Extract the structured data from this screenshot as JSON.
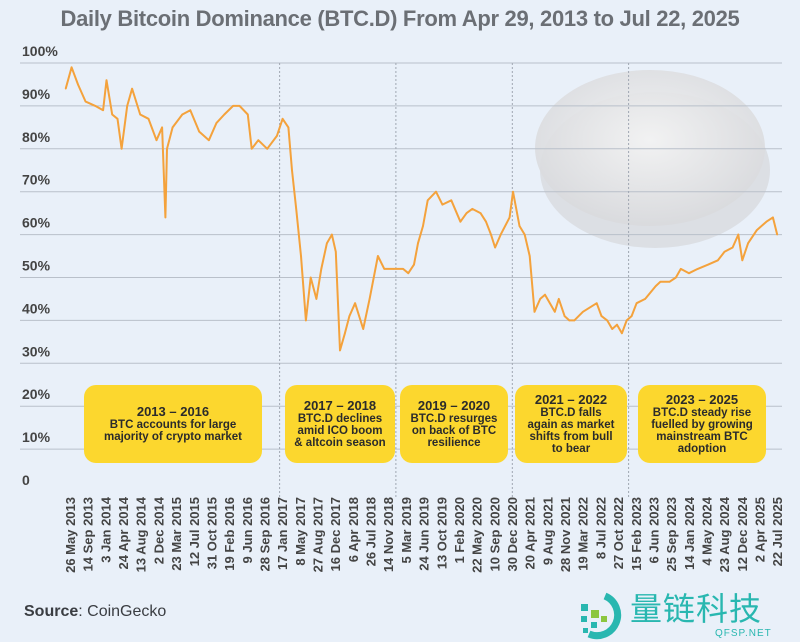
{
  "chart_data": {
    "type": "line",
    "title": "Daily Bitcoin Dominance (BTC.D) From Apr 29, 2013 to Jul 22, 2025",
    "xlabel": "",
    "ylabel": "",
    "ylim": [
      0,
      100
    ],
    "yticks": [
      "0",
      "10%",
      "20%",
      "30%",
      "40%",
      "50%",
      "60%",
      "70%",
      "80%",
      "90%",
      "100%"
    ],
    "grid": "horizontal",
    "xticks": [
      "26 May 2013",
      "14 Sep 2013",
      "3 Jan 2014",
      "24 Apr 2014",
      "13 Aug 2014",
      "2 Dec 2014",
      "23 Mar 2015",
      "12 Jul 2015",
      "31 Oct 2015",
      "19 Feb 2016",
      "9 Jun 2016",
      "28 Sep 2016",
      "17 Jan 2017",
      "8 May 2017",
      "27 Aug 2017",
      "16 Dec 2017",
      "6 Apr 2018",
      "26 Jul 2018",
      "14 Nov 2018",
      "5 Mar 2019",
      "24 Jun 2019",
      "13 Oct 2019",
      "1 Feb 2020",
      "22 May 2020",
      "10 Sep 2020",
      "30 Dec 2020",
      "20 Apr 2021",
      "9 Aug 2021",
      "28 Nov 2021",
      "19 Mar 2022",
      "8 Jul 2022",
      "27 Oct 2022",
      "15 Feb 2023",
      "6 Jun 2023",
      "25 Sep 2023",
      "14 Jan 2024",
      "4 May 2024",
      "23 Aug 2024",
      "12 Dec 2024",
      "2 Apr 2025",
      "22 Jul 2025"
    ],
    "period_dividers": [
      "2017-01-01",
      "2019-01-01",
      "2021-01-01",
      "2023-01-01"
    ],
    "line_color": "#f4a23c",
    "series": [
      {
        "x": [
          "2013-04-29",
          "2013-06-05",
          "2013-07-15",
          "2013-09-01",
          "2013-11-01",
          "2013-12-20",
          "2014-01-10",
          "2014-02-15",
          "2014-03-20",
          "2014-04-15",
          "2014-05-20",
          "2014-06-20",
          "2014-08-10",
          "2014-10-01",
          "2014-11-20",
          "2014-12-25",
          "2015-01-15",
          "2015-01-25",
          "2015-03-01",
          "2015-05-01",
          "2015-06-20",
          "2015-08-15",
          "2015-10-15",
          "2015-12-01",
          "2016-01-20",
          "2016-03-15",
          "2016-04-25",
          "2016-06-15",
          "2016-07-10",
          "2016-08-20",
          "2016-10-15",
          "2016-12-15",
          "2017-01-20",
          "2017-02-25",
          "2017-03-20",
          "2017-04-15",
          "2017-05-15",
          "2017-06-15",
          "2017-07-15",
          "2017-08-20",
          "2017-09-20",
          "2017-10-25",
          "2017-11-25",
          "2017-12-20",
          "2018-01-15",
          "2018-02-15",
          "2018-03-15",
          "2018-04-20",
          "2018-06-10",
          "2018-07-20",
          "2018-09-10",
          "2018-10-20",
          "2018-12-15",
          "2019-02-15",
          "2019-03-20",
          "2019-04-25",
          "2019-05-20",
          "2019-06-20",
          "2019-07-20",
          "2019-09-10",
          "2019-10-20",
          "2019-12-15",
          "2020-02-10",
          "2020-03-20",
          "2020-04-25",
          "2020-06-15",
          "2020-07-20",
          "2020-08-20",
          "2020-09-15",
          "2020-10-20",
          "2020-12-15",
          "2021-01-05",
          "2021-02-15",
          "2021-03-20",
          "2021-04-20",
          "2021-05-20",
          "2021-06-25",
          "2021-07-25",
          "2021-08-25",
          "2021-09-25",
          "2021-10-20",
          "2021-11-25",
          "2021-12-25",
          "2022-01-25",
          "2022-03-20",
          "2022-06-15",
          "2022-07-15",
          "2022-08-20",
          "2022-09-20",
          "2022-10-20",
          "2022-11-20",
          "2022-12-20",
          "2023-01-20",
          "2023-02-20",
          "2023-04-15",
          "2023-06-20",
          "2023-07-20",
          "2023-09-15",
          "2023-10-25",
          "2023-11-25",
          "2024-01-15",
          "2024-03-10",
          "2024-05-15",
          "2024-07-15",
          "2024-08-25",
          "2024-10-15",
          "2024-11-20",
          "2024-12-15",
          "2025-01-20",
          "2025-03-15",
          "2025-05-15",
          "2025-06-25",
          "2025-07-22"
        ],
        "y": [
          94,
          99,
          95,
          91,
          90,
          89,
          96,
          88,
          87,
          80,
          90,
          94,
          88,
          87,
          82,
          85,
          64,
          80,
          85,
          88,
          89,
          84,
          82,
          86,
          88,
          90,
          90,
          88,
          80,
          82,
          80,
          83,
          87,
          85,
          75,
          66,
          55,
          40,
          50,
          45,
          52,
          58,
          60,
          56,
          33,
          37,
          41,
          44,
          38,
          45,
          55,
          52,
          52,
          52,
          51,
          53,
          58,
          62,
          68,
          70,
          67,
          68,
          63,
          65,
          66,
          65,
          63,
          60,
          57,
          60,
          64,
          70,
          62,
          60,
          55,
          42,
          45,
          46,
          44,
          42,
          45,
          41,
          40,
          40,
          42,
          44,
          41,
          40,
          38,
          39,
          37,
          40,
          41,
          44,
          45,
          48,
          49,
          49,
          50,
          52,
          51,
          52,
          53,
          54,
          56,
          57,
          60,
          54,
          58,
          61,
          63,
          64,
          60
        ]
      }
    ]
  },
  "annotations": [
    {
      "period": "2013 – 2016",
      "text": [
        "BTC accounts for large",
        "majority of crypto market"
      ]
    },
    {
      "period": "2017 – 2018",
      "text": [
        "BTC.D declines",
        "amid ICO boom",
        "& altcoin season"
      ]
    },
    {
      "period": "2019 – 2020",
      "text": [
        "BTC.D resurges",
        "on back of BTC",
        "resilience"
      ]
    },
    {
      "period": "2021 – 2022",
      "text": [
        "BTC.D falls",
        "again as market",
        "shifts from bull",
        "to bear"
      ]
    },
    {
      "period": "2023 – 2025",
      "text": [
        "BTC.D steady rise",
        "fuelled by growing",
        "mainstream BTC",
        "adoption"
      ]
    }
  ],
  "source": {
    "label": "Source",
    "value": ": CoinGecko"
  },
  "watermark": {
    "cn": "量链科技",
    "en": "QFSP.NET"
  },
  "colors": {
    "background": "#e9f0f9",
    "box": "#fcd72e",
    "line": "#f4a23c"
  }
}
